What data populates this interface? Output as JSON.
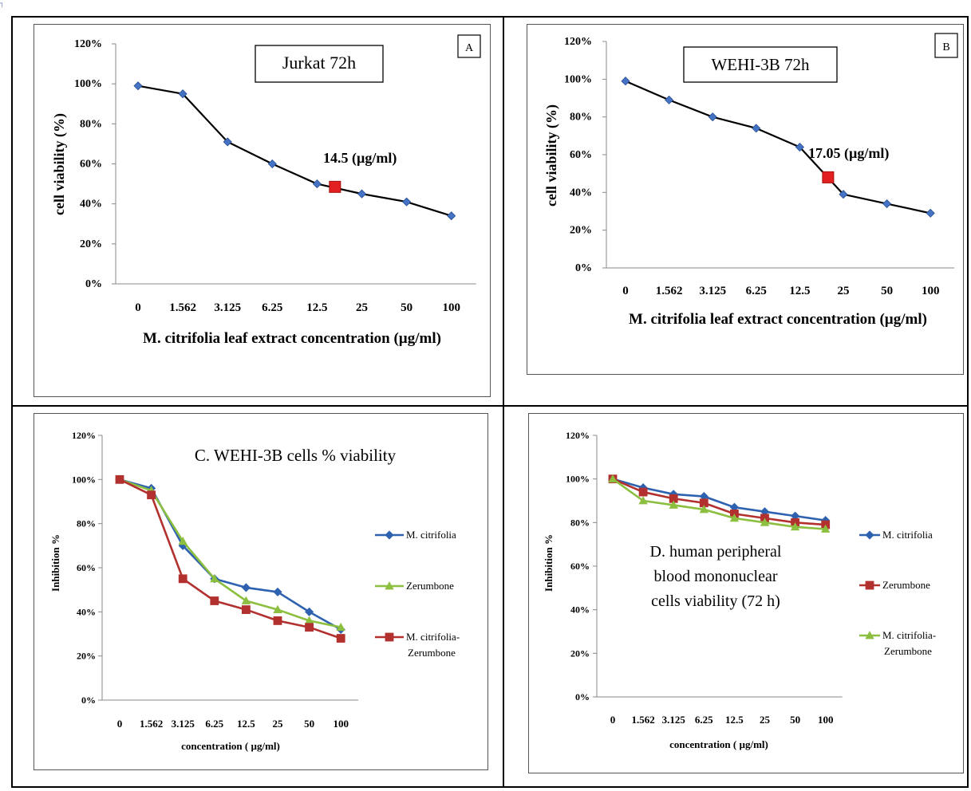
{
  "corner_mark": "┐",
  "chart_data": [
    {
      "id": "A",
      "type": "line",
      "panel_label": "A",
      "title": "Jurkat 72h",
      "xlabel": "M. citrifolia leaf extract concentration  (µg/ml)",
      "ylabel": "cell viability  (%)",
      "categories": [
        "0",
        "1.562",
        "3.125",
        "6.25",
        "12.5",
        "25",
        "50",
        "100"
      ],
      "y_ticks": [
        "0%",
        "20%",
        "40%",
        "60%",
        "80%",
        "100%",
        "120%"
      ],
      "ylim": [
        0,
        120
      ],
      "series": [
        {
          "values": [
            99,
            95,
            71,
            60,
            50,
            45,
            41,
            34
          ],
          "color": "#000000",
          "marker": "diamond",
          "marker_color": "#4472c4"
        }
      ],
      "highlight": {
        "x": 4.4,
        "y": 48.5,
        "label": "14.5 (µg/ml)",
        "color": "#e32020"
      },
      "legend": "none"
    },
    {
      "id": "B",
      "type": "line",
      "panel_label": "B",
      "title": "WEHI-3B 72h",
      "xlabel": "M. citrifolia leaf extract concentration  (µg/ml)",
      "ylabel": "cell viability  (%)",
      "categories": [
        "0",
        "1.562",
        "3.125",
        "6.25",
        "12.5",
        "25",
        "50",
        "100"
      ],
      "y_ticks": [
        "0%",
        "20%",
        "40%",
        "60%",
        "80%",
        "100%",
        "120%"
      ],
      "ylim": [
        0,
        120
      ],
      "series": [
        {
          "values": [
            99,
            89,
            80,
            74,
            64,
            39,
            34,
            29
          ],
          "color": "#000000",
          "marker": "diamond",
          "marker_color": "#4472c4"
        }
      ],
      "highlight": {
        "x": 4.65,
        "y": 48,
        "label": "17.05 (µg/ml)",
        "color": "#e32020"
      },
      "legend": "none"
    },
    {
      "id": "C",
      "type": "line",
      "title": "C. WEHI-3B  cells % viability",
      "xlabel": "concentration ( µg/ml)",
      "ylabel": "Inhibition %",
      "categories": [
        "0",
        "1.562",
        "3.125",
        "6.25",
        "12.5",
        "25",
        "50",
        "100"
      ],
      "y_ticks": [
        "0%",
        "20%",
        "40%",
        "60%",
        "80%",
        "100%",
        "120%"
      ],
      "ylim": [
        0,
        120
      ],
      "series": [
        {
          "name": "M. citrifolia",
          "values": [
            100,
            96,
            70,
            55,
            51,
            49,
            40,
            32
          ],
          "color": "#2e62b0",
          "marker": "diamond"
        },
        {
          "name": "Zerumbone",
          "values": [
            100,
            95,
            72,
            55,
            45,
            41,
            36,
            33
          ],
          "color": "#8cbf3f",
          "marker": "triangle"
        },
        {
          "name": "M. citrifolia-Zerumbone",
          "name_lines": [
            "M. citrifolia-",
            "Zerumbone"
          ],
          "values": [
            100,
            93,
            55,
            45,
            41,
            36,
            33,
            28
          ],
          "color": "#b2302d",
          "marker": "square"
        }
      ],
      "legend": "right"
    },
    {
      "id": "D",
      "type": "line",
      "title": "D. human peripheral blood mononuclear cells viability (72 h)",
      "title_lines": [
        "D. human peripheral",
        "blood mononuclear",
        "cells viability (72 h)"
      ],
      "xlabel": "concentration ( µg/ml)",
      "ylabel": "Inhibition %",
      "categories": [
        "0",
        "1.562",
        "3.125",
        "6.25",
        "12.5",
        "25",
        "50",
        "100"
      ],
      "y_ticks": [
        "0%",
        "20%",
        "40%",
        "60%",
        "80%",
        "100%",
        "120%"
      ],
      "ylim": [
        0,
        120
      ],
      "series": [
        {
          "name": "M. citrifolia",
          "values": [
            100,
            96,
            93,
            92,
            87,
            85,
            83,
            81
          ],
          "color": "#2e62b0",
          "marker": "diamond"
        },
        {
          "name": "Zerumbone",
          "values": [
            100,
            94,
            91,
            89,
            84,
            82,
            80,
            79
          ],
          "color": "#b2302d",
          "marker": "square"
        },
        {
          "name": "M. citrifolia-Zerumbone",
          "name_lines": [
            "M. citrifolia-",
            "Zerumbone"
          ],
          "values": [
            100,
            90,
            88,
            86,
            82,
            80,
            78,
            77
          ],
          "color": "#8cbf3f",
          "marker": "triangle"
        }
      ],
      "legend": "right"
    }
  ]
}
